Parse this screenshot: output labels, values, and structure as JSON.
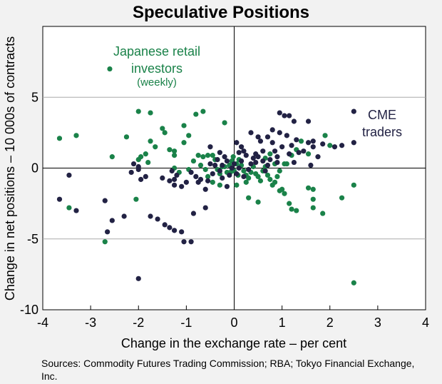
{
  "chart_data": {
    "type": "scatter",
    "title": "Speculative Positions",
    "xlabel": "Change in the exchange rate – per cent",
    "ylabel": "Change in net positions – 10 000s of contracts",
    "xlim": [
      -4,
      4
    ],
    "ylim": [
      -10,
      10
    ],
    "x_ticks": [
      "-4",
      "-3",
      "-2",
      "-1",
      "0",
      "1",
      "2",
      "3",
      "4"
    ],
    "y_ticks": [
      "5",
      "0",
      "-5",
      "-10"
    ],
    "grid": "horizontal",
    "annotations": [
      {
        "series": "japanese",
        "lines": [
          "Japanese retail",
          "investors"
        ],
        "sub": "(weekly)"
      },
      {
        "series": "cme",
        "lines": [
          "CME",
          "traders"
        ]
      }
    ],
    "series": [
      {
        "key": "japanese",
        "color": "#1a8249",
        "points": [
          [
            -2.6,
            7.0
          ],
          [
            -3.65,
            2.1
          ],
          [
            -3.3,
            2.3
          ],
          [
            -2.55,
            0.8
          ],
          [
            -2.25,
            2.2
          ],
          [
            -2.0,
            4.0
          ],
          [
            -1.75,
            3.9
          ],
          [
            -1.5,
            2.8
          ],
          [
            -1.45,
            2.5
          ],
          [
            -1.75,
            1.9
          ],
          [
            -1.85,
            1.0
          ],
          [
            -1.95,
            0.8
          ],
          [
            -2.0,
            0.6
          ],
          [
            -1.8,
            0.4
          ],
          [
            -1.65,
            1.5
          ],
          [
            -1.35,
            1.3
          ],
          [
            -1.25,
            1.2
          ],
          [
            -1.25,
            0.9
          ],
          [
            -1.05,
            1.8
          ],
          [
            -0.95,
            2.3
          ],
          [
            -0.8,
            3.8
          ],
          [
            -0.65,
            4.0
          ],
          [
            -1.05,
            3.0
          ],
          [
            -1.25,
            0.0
          ],
          [
            -1.15,
            -0.3
          ],
          [
            -0.95,
            -0.1
          ],
          [
            -0.85,
            0.5
          ],
          [
            -0.75,
            0.9
          ],
          [
            -0.65,
            0.8
          ],
          [
            -0.7,
            0.2
          ],
          [
            -0.6,
            -0.1
          ],
          [
            -0.55,
            0.9
          ],
          [
            -0.45,
            0.9
          ],
          [
            -0.4,
            0.6
          ],
          [
            -0.35,
            -0.1
          ],
          [
            -0.3,
            -0.4
          ],
          [
            -0.25,
            0.1
          ],
          [
            -0.55,
            -0.6
          ],
          [
            -0.45,
            -1.0
          ],
          [
            -0.3,
            -1.2
          ],
          [
            -0.2,
            0.1
          ],
          [
            -0.15,
            -0.3
          ],
          [
            -0.1,
            0.2
          ],
          [
            -0.08,
            -0.3
          ],
          [
            -0.05,
            0.5
          ],
          [
            -0.02,
            0.8
          ],
          [
            0.0,
            -0.2
          ],
          [
            0.05,
            0.3
          ],
          [
            0.08,
            -0.5
          ],
          [
            -0.2,
            3.2
          ],
          [
            0.1,
            0.6
          ],
          [
            0.15,
            0.2
          ],
          [
            0.2,
            -0.2
          ],
          [
            0.25,
            -0.5
          ],
          [
            0.3,
            -0.7
          ],
          [
            0.35,
            -0.3
          ],
          [
            0.4,
            0.1
          ],
          [
            0.45,
            -0.4
          ],
          [
            0.5,
            -0.6
          ],
          [
            0.55,
            -0.9
          ],
          [
            0.6,
            -0.2
          ],
          [
            0.65,
            0.1
          ],
          [
            0.7,
            -0.5
          ],
          [
            0.75,
            -0.8
          ],
          [
            0.8,
            -1.2
          ],
          [
            0.85,
            -1.0
          ],
          [
            0.9,
            -0.6
          ],
          [
            0.95,
            -1.6
          ],
          [
            1.0,
            -1.5
          ],
          [
            1.05,
            -1.8
          ],
          [
            1.15,
            -2.5
          ],
          [
            1.2,
            -2.9
          ],
          [
            1.3,
            -3.0
          ],
          [
            0.95,
            -0.2
          ],
          [
            1.05,
            0.3
          ],
          [
            1.1,
            0.3
          ],
          [
            1.2,
            0.9
          ],
          [
            1.3,
            1.3
          ],
          [
            1.4,
            1.9
          ],
          [
            1.55,
            1.0
          ],
          [
            1.55,
            -1.4
          ],
          [
            1.65,
            -1.5
          ],
          [
            1.65,
            -2.2
          ],
          [
            1.65,
            -2.8
          ],
          [
            1.85,
            -3.2
          ],
          [
            1.9,
            2.3
          ],
          [
            2.0,
            1.6
          ],
          [
            2.25,
            -2.1
          ],
          [
            2.5,
            -1.2
          ],
          [
            2.5,
            -8.1
          ],
          [
            -2.7,
            -5.2
          ],
          [
            -2.05,
            -2.2
          ],
          [
            -3.45,
            -2.8
          ],
          [
            0.3,
            -2.1
          ],
          [
            0.5,
            -2.4
          ],
          [
            0.05,
            -1.2
          ],
          [
            0.25,
            -1.0
          ],
          [
            0.65,
            0.7
          ],
          [
            0.85,
            0.3
          ],
          [
            0.75,
            1.0
          ]
        ]
      },
      {
        "key": "cme",
        "color": "#222244",
        "points": [
          [
            2.5,
            4.0
          ],
          [
            2.5,
            1.8
          ],
          [
            2.25,
            1.6
          ],
          [
            2.1,
            1.5
          ],
          [
            1.85,
            1.7
          ],
          [
            1.75,
            0.8
          ],
          [
            1.65,
            1.5
          ],
          [
            1.55,
            1.8
          ],
          [
            1.45,
            1.2
          ],
          [
            1.35,
            1.1
          ],
          [
            1.25,
            0.4
          ],
          [
            1.15,
            1.0
          ],
          [
            1.1,
            2.3
          ],
          [
            1.05,
            3.7
          ],
          [
            1.15,
            3.7
          ],
          [
            1.25,
            3.3
          ],
          [
            0.95,
            3.9
          ],
          [
            0.95,
            2.5
          ],
          [
            0.85,
            1.2
          ],
          [
            0.8,
            1.8
          ],
          [
            0.75,
            0.6
          ],
          [
            0.7,
            0.2
          ],
          [
            0.65,
            -0.2
          ],
          [
            0.6,
            0.5
          ],
          [
            0.55,
            1.9
          ],
          [
            0.5,
            2.2
          ],
          [
            0.45,
            1.0
          ],
          [
            0.4,
            0.7
          ],
          [
            0.35,
            0.3
          ],
          [
            0.3,
            -0.1
          ],
          [
            0.25,
            0.9
          ],
          [
            0.2,
            1.2
          ],
          [
            0.15,
            0.5
          ],
          [
            0.1,
            0.0
          ],
          [
            0.05,
            -0.4
          ],
          [
            0.0,
            0.3
          ],
          [
            -0.05,
            0.0
          ],
          [
            -0.1,
            -0.5
          ],
          [
            -0.15,
            0.5
          ],
          [
            -0.2,
            0.8
          ],
          [
            -0.25,
            0.2
          ],
          [
            -0.3,
            -0.2
          ],
          [
            -0.35,
            0.6
          ],
          [
            -0.4,
            0.2
          ],
          [
            -0.45,
            -0.4
          ],
          [
            -0.5,
            0.3
          ],
          [
            -0.55,
            -0.9
          ],
          [
            -0.6,
            -1.5
          ],
          [
            -0.7,
            -0.8
          ],
          [
            -0.8,
            -0.6
          ],
          [
            -0.9,
            -0.3
          ],
          [
            -1.0,
            -1.0
          ],
          [
            -1.1,
            -1.3
          ],
          [
            -1.2,
            -0.5
          ],
          [
            -1.25,
            -1.2
          ],
          [
            -1.3,
            -0.2
          ],
          [
            -1.35,
            -0.9
          ],
          [
            -1.5,
            -0.7
          ],
          [
            -1.75,
            -3.4
          ],
          [
            -1.85,
            -0.6
          ],
          [
            -1.95,
            -0.8
          ],
          [
            -2.0,
            -0.1
          ],
          [
            -2.1,
            0.3
          ],
          [
            -2.15,
            -0.3
          ],
          [
            -2.3,
            -3.4
          ],
          [
            -2.55,
            -3.7
          ],
          [
            -2.65,
            -4.5
          ],
          [
            -2.7,
            -2.3
          ],
          [
            -3.3,
            -3.0
          ],
          [
            -3.45,
            -0.5
          ],
          [
            -3.65,
            -2.2
          ],
          [
            -1.6,
            -3.6
          ],
          [
            -1.45,
            -4.0
          ],
          [
            -1.35,
            -4.2
          ],
          [
            -1.25,
            -4.4
          ],
          [
            -1.1,
            -4.5
          ],
          [
            -1.05,
            -5.2
          ],
          [
            -0.9,
            -5.2
          ],
          [
            -0.85,
            -3.2
          ],
          [
            -0.6,
            -2.8
          ],
          [
            -2.0,
            -7.8
          ],
          [
            -2.0,
            0.1
          ],
          [
            -1.25,
            -0.8
          ],
          [
            -0.5,
            1.5
          ],
          [
            0.05,
            1.8
          ],
          [
            0.15,
            1.5
          ],
          [
            0.35,
            2.5
          ],
          [
            0.8,
            2.7
          ],
          [
            1.0,
            1.5
          ],
          [
            1.3,
            2.0
          ],
          [
            1.55,
            3.3
          ],
          [
            1.65,
            1.9
          ],
          [
            0.2,
            -0.6
          ],
          [
            0.45,
            0.4
          ],
          [
            -0.15,
            -1.3
          ],
          [
            -0.25,
            -0.7
          ],
          [
            0.6,
            1.2
          ],
          [
            0.9,
            0.8
          ],
          [
            1.2,
            1.6
          ],
          [
            0.7,
            2.2
          ],
          [
            1.6,
            0.2
          ],
          [
            -0.75,
            -1.0
          ],
          [
            -0.3,
            1.1
          ],
          [
            0.1,
            1.1
          ],
          [
            0.5,
            0.8
          ],
          [
            0.9,
            0.4
          ]
        ]
      }
    ]
  },
  "sources": {
    "label": "Sources:",
    "text": "Commodity Futures Trading Commission; RBA; Tokyo Financial Exchange, Inc."
  }
}
